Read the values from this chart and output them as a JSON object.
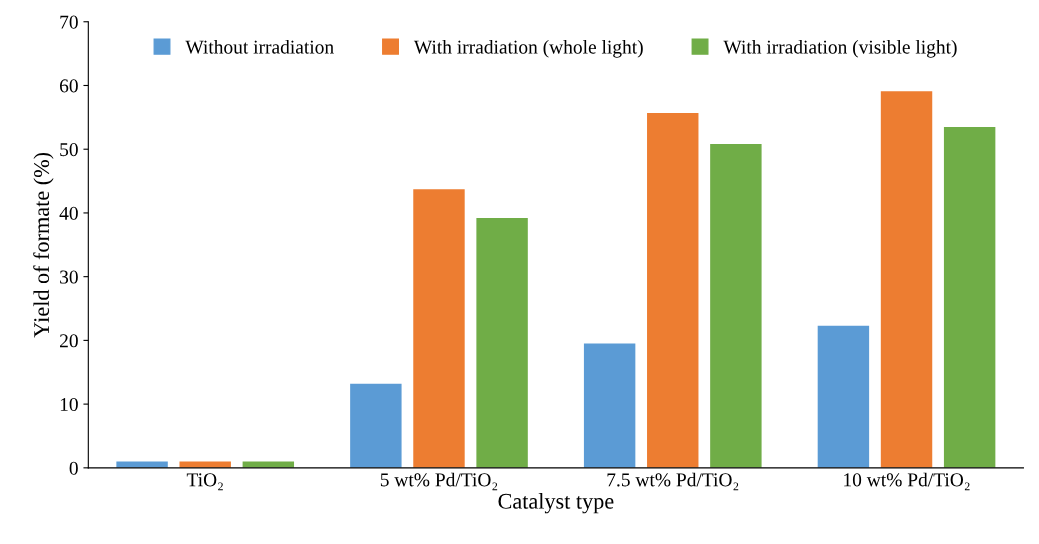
{
  "chart_data": {
    "type": "bar",
    "xlabel": "Catalyst type",
    "ylabel": "Yield of formate (%)",
    "categories": [
      "TiO₂",
      "5 wt% Pd/TiO₂",
      "7.5 wt% Pd/TiO₂",
      "10 wt% Pd/TiO₂"
    ],
    "series": [
      {
        "name": "Without irradiation",
        "color": "#5b9bd5",
        "values": [
          1.0,
          13.2,
          19.5,
          22.3
        ]
      },
      {
        "name": "With irradiation (whole light)",
        "color": "#ed7d31",
        "values": [
          1.0,
          43.7,
          55.7,
          59.1
        ]
      },
      {
        "name": "With irradiation (visible light)",
        "color": "#70ad47",
        "values": [
          1.0,
          39.2,
          50.8,
          53.5
        ]
      }
    ],
    "ylim": [
      0,
      70
    ],
    "yticks": [
      0,
      10,
      20,
      30,
      40,
      50,
      60,
      70
    ],
    "grid": false,
    "legend": "top"
  }
}
